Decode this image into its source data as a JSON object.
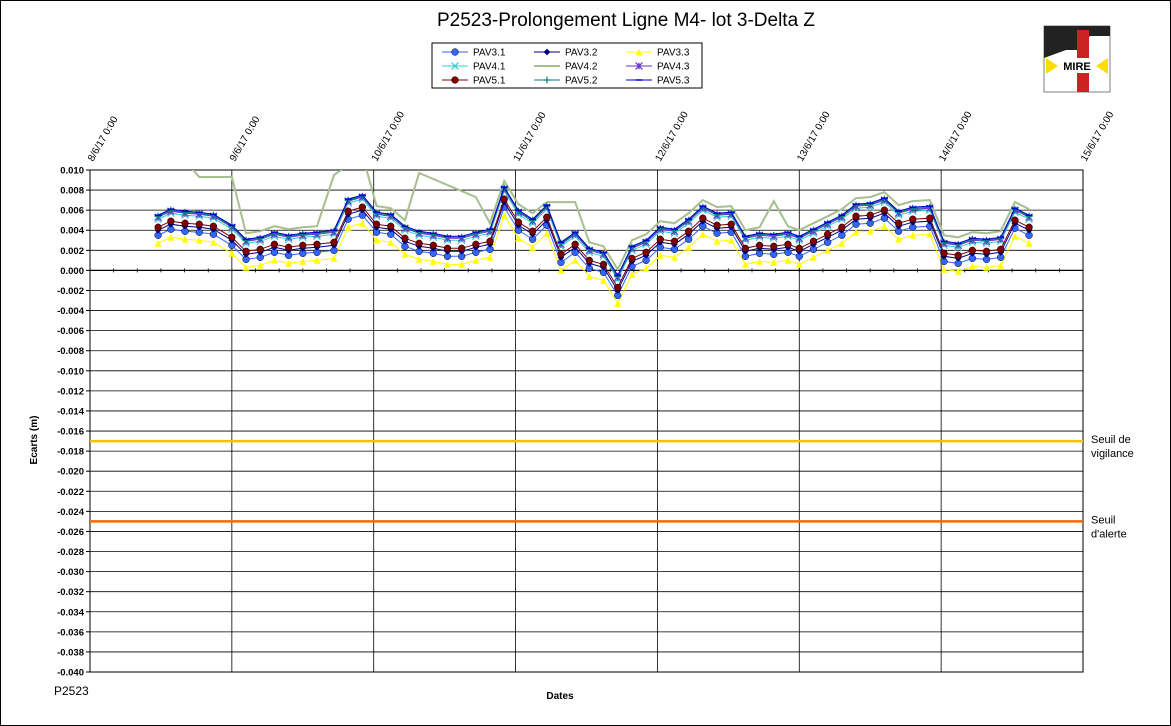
{
  "footer_label": "P2523",
  "logo": {
    "text": "MIRE"
  },
  "chart_data": {
    "type": "line",
    "title": "P2523-Prolongement  Ligne  M4- lot 3-Delta Z",
    "xlabel": "Dates",
    "ylabel": "Ecarts (m)",
    "xlim": [
      "2017-06-08",
      "2017-06-15"
    ],
    "ylim": [
      -0.04,
      0.01
    ],
    "y_tick_step": 0.002,
    "x_tick_labels": [
      "8/6/17 0:00",
      "9/6/17 0:00",
      "10/6/17 0:00",
      "11/6/17 0:00",
      "12/6/17 0:00",
      "13/6/17 0:00",
      "14/6/17 0:00",
      "15/6/17 0:00"
    ],
    "grid": true,
    "legend_position": "top-center",
    "thresholds": [
      {
        "label_lines": [
          "Seuil de",
          "vigilance"
        ],
        "value": -0.017,
        "color": "#f2c200"
      },
      {
        "label_lines": [
          "Seuil",
          "d'alerte"
        ],
        "value": -0.025,
        "color": "#ff6600"
      }
    ],
    "x_times_days": [
      0.48,
      0.57,
      0.67,
      0.77,
      0.87,
      1.0,
      1.1,
      1.2,
      1.3,
      1.4,
      1.5,
      1.6,
      1.72,
      1.82,
      1.92,
      2.02,
      2.12,
      2.22,
      2.32,
      2.42,
      2.52,
      2.62,
      2.72,
      2.82,
      2.92,
      3.02,
      3.12,
      3.22,
      3.32,
      3.42,
      3.52,
      3.62,
      3.72,
      3.82,
      3.92,
      4.02,
      4.12,
      4.22,
      4.32,
      4.42,
      4.52,
      4.62,
      4.72,
      4.82,
      4.92,
      5.0,
      5.1,
      5.2,
      5.3,
      5.4,
      5.5,
      5.6,
      5.7,
      5.8,
      5.92,
      6.02,
      6.12,
      6.22,
      6.32,
      6.42,
      6.52,
      6.62
    ],
    "series": [
      {
        "name": "PAV3.1",
        "color": "#3366ff",
        "marker": "circle",
        "offset": -0.0008
      },
      {
        "name": "PAV3.2",
        "color": "#000080",
        "marker": "diamond",
        "offset": -0.0003
      },
      {
        "name": "PAV3.3",
        "color": "#ffff00",
        "marker": "triangle",
        "offset": -0.0016
      },
      {
        "name": "PAV4.1",
        "color": "#33cccc",
        "marker": "x",
        "offset": 0.0008
      },
      {
        "name": "PAV4.2",
        "color": "#a6bf8f",
        "marker": "none",
        "offset": 0.0018
      },
      {
        "name": "PAV4.3",
        "color": "#6633cc",
        "marker": "star",
        "offset": 0.001
      },
      {
        "name": "PAV5.1",
        "color": "#800000",
        "marker": "circle",
        "offset": 0.0
      },
      {
        "name": "PAV5.2",
        "color": "#008080",
        "marker": "plus",
        "offset": 0.0011
      },
      {
        "name": "PAV5.3",
        "color": "#0000cc",
        "marker": "dash",
        "offset": 0.0012
      }
    ],
    "base_values": [
      0.0043,
      0.0049,
      0.0047,
      0.0046,
      0.0044,
      0.0033,
      0.0019,
      0.0021,
      0.0026,
      0.0023,
      0.0025,
      0.0026,
      0.0028,
      0.0059,
      0.0063,
      0.0046,
      0.0044,
      0.0032,
      0.0027,
      0.0025,
      0.0022,
      0.0022,
      0.0026,
      0.0029,
      0.0071,
      0.0048,
      0.0039,
      0.0053,
      0.0016,
      0.0026,
      0.001,
      0.0006,
      -0.0017,
      0.0012,
      0.0018,
      0.0031,
      0.0029,
      0.0039,
      0.0052,
      0.0045,
      0.0046,
      0.0022,
      0.0025,
      0.0024,
      0.0026,
      0.0022,
      0.0029,
      0.0036,
      0.0043,
      0.0054,
      0.0055,
      0.006,
      0.0047,
      0.0051,
      0.0052,
      0.0017,
      0.0015,
      0.002,
      0.0019,
      0.0021,
      0.005,
      0.0043
    ]
  }
}
